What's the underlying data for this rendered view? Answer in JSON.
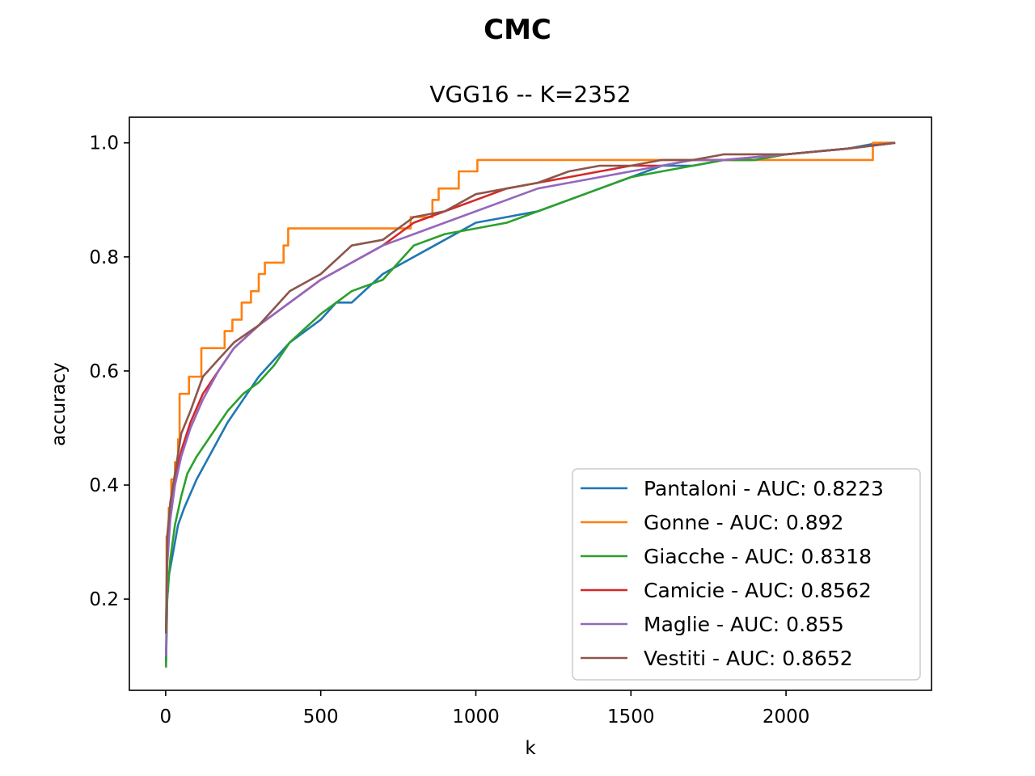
{
  "chart_data": {
    "type": "line",
    "title": "CMC",
    "subtitle": "VGG16 -- K=2352",
    "xlabel": "k",
    "ylabel": "accuracy",
    "xlim": [
      -117,
      2469
    ],
    "ylim": [
      0.04,
      1.045
    ],
    "xticks": [
      0,
      500,
      1000,
      1500,
      2000
    ],
    "yticks": [
      0.2,
      0.4,
      0.6,
      0.8,
      1.0
    ],
    "xtick_labels": [
      "0",
      "500",
      "1000",
      "1500",
      "2000"
    ],
    "ytick_labels": [
      "0.2",
      "0.4",
      "0.6",
      "0.8",
      "1.0"
    ],
    "legend_position": "lower-right",
    "grid": false,
    "series": [
      {
        "name": "Pantaloni - AUC: 0.8223",
        "color": "#1f77b4",
        "step": false,
        "points": [
          [
            1,
            0.09
          ],
          [
            5,
            0.2
          ],
          [
            10,
            0.24
          ],
          [
            20,
            0.27
          ],
          [
            40,
            0.33
          ],
          [
            60,
            0.36
          ],
          [
            100,
            0.41
          ],
          [
            150,
            0.46
          ],
          [
            200,
            0.51
          ],
          [
            250,
            0.55
          ],
          [
            300,
            0.59
          ],
          [
            400,
            0.65
          ],
          [
            500,
            0.69
          ],
          [
            550,
            0.72
          ],
          [
            600,
            0.72
          ],
          [
            700,
            0.77
          ],
          [
            800,
            0.8
          ],
          [
            900,
            0.83
          ],
          [
            1000,
            0.86
          ],
          [
            1100,
            0.87
          ],
          [
            1200,
            0.88
          ],
          [
            1300,
            0.9
          ],
          [
            1400,
            0.92
          ],
          [
            1500,
            0.94
          ],
          [
            1600,
            0.96
          ],
          [
            1700,
            0.96
          ],
          [
            1800,
            0.97
          ],
          [
            1900,
            0.97
          ],
          [
            2000,
            0.98
          ],
          [
            2200,
            0.99
          ],
          [
            2300,
            1.0
          ],
          [
            2352,
            1.0
          ]
        ]
      },
      {
        "name": "Gonne - AUC: 0.892",
        "color": "#ff7f0e",
        "step": true,
        "points": [
          [
            1,
            0.15
          ],
          [
            3,
            0.31
          ],
          [
            10,
            0.36
          ],
          [
            18,
            0.41
          ],
          [
            30,
            0.44
          ],
          [
            40,
            0.48
          ],
          [
            45,
            0.56
          ],
          [
            75,
            0.59
          ],
          [
            115,
            0.64
          ],
          [
            190,
            0.67
          ],
          [
            215,
            0.69
          ],
          [
            245,
            0.72
          ],
          [
            275,
            0.74
          ],
          [
            300,
            0.77
          ],
          [
            320,
            0.79
          ],
          [
            380,
            0.82
          ],
          [
            395,
            0.85
          ],
          [
            790,
            0.87
          ],
          [
            860,
            0.9
          ],
          [
            880,
            0.92
          ],
          [
            945,
            0.95
          ],
          [
            1005,
            0.97
          ],
          [
            1020,
            0.97
          ],
          [
            2280,
            1.0
          ],
          [
            2340,
            1.0
          ]
        ]
      },
      {
        "name": "Giacche - AUC: 0.8318",
        "color": "#2ca02c",
        "step": false,
        "points": [
          [
            1,
            0.08
          ],
          [
            5,
            0.2
          ],
          [
            15,
            0.27
          ],
          [
            30,
            0.33
          ],
          [
            50,
            0.38
          ],
          [
            70,
            0.42
          ],
          [
            100,
            0.45
          ],
          [
            150,
            0.49
          ],
          [
            200,
            0.53
          ],
          [
            250,
            0.56
          ],
          [
            300,
            0.58
          ],
          [
            350,
            0.61
          ],
          [
            400,
            0.65
          ],
          [
            500,
            0.7
          ],
          [
            600,
            0.74
          ],
          [
            700,
            0.76
          ],
          [
            800,
            0.82
          ],
          [
            900,
            0.84
          ],
          [
            1000,
            0.85
          ],
          [
            1100,
            0.86
          ],
          [
            1200,
            0.88
          ],
          [
            1300,
            0.9
          ],
          [
            1400,
            0.92
          ],
          [
            1500,
            0.94
          ],
          [
            1600,
            0.95
          ],
          [
            1700,
            0.96
          ],
          [
            1800,
            0.97
          ],
          [
            1900,
            0.97
          ],
          [
            2000,
            0.98
          ],
          [
            2200,
            0.99
          ],
          [
            2352,
            1.0
          ]
        ]
      },
      {
        "name": "Camicie - AUC: 0.8562",
        "color": "#d62728",
        "step": false,
        "points": [
          [
            1,
            0.14
          ],
          [
            5,
            0.28
          ],
          [
            15,
            0.35
          ],
          [
            30,
            0.41
          ],
          [
            50,
            0.46
          ],
          [
            80,
            0.51
          ],
          [
            120,
            0.56
          ],
          [
            170,
            0.6
          ],
          [
            220,
            0.64
          ],
          [
            300,
            0.68
          ],
          [
            400,
            0.72
          ],
          [
            500,
            0.76
          ],
          [
            600,
            0.79
          ],
          [
            700,
            0.82
          ],
          [
            800,
            0.86
          ],
          [
            900,
            0.88
          ],
          [
            1000,
            0.9
          ],
          [
            1100,
            0.92
          ],
          [
            1200,
            0.93
          ],
          [
            1300,
            0.94
          ],
          [
            1400,
            0.95
          ],
          [
            1500,
            0.96
          ],
          [
            1600,
            0.96
          ],
          [
            1700,
            0.97
          ],
          [
            1800,
            0.97
          ],
          [
            2000,
            0.98
          ],
          [
            2200,
            0.99
          ],
          [
            2352,
            1.0
          ]
        ]
      },
      {
        "name": "Maglie - AUC: 0.855",
        "color": "#9467bd",
        "step": false,
        "points": [
          [
            1,
            0.1
          ],
          [
            5,
            0.26
          ],
          [
            15,
            0.34
          ],
          [
            30,
            0.4
          ],
          [
            50,
            0.45
          ],
          [
            80,
            0.5
          ],
          [
            120,
            0.55
          ],
          [
            170,
            0.6
          ],
          [
            220,
            0.64
          ],
          [
            300,
            0.68
          ],
          [
            400,
            0.72
          ],
          [
            500,
            0.76
          ],
          [
            600,
            0.79
          ],
          [
            700,
            0.82
          ],
          [
            800,
            0.84
          ],
          [
            900,
            0.86
          ],
          [
            1000,
            0.88
          ],
          [
            1100,
            0.9
          ],
          [
            1200,
            0.92
          ],
          [
            1300,
            0.93
          ],
          [
            1400,
            0.94
          ],
          [
            1500,
            0.95
          ],
          [
            1600,
            0.96
          ],
          [
            1700,
            0.97
          ],
          [
            1800,
            0.97
          ],
          [
            2000,
            0.98
          ],
          [
            2200,
            0.99
          ],
          [
            2352,
            1.0
          ]
        ]
      },
      {
        "name": "Vestiti - AUC: 0.8652",
        "color": "#8c564b",
        "step": false,
        "points": [
          [
            1,
            0.14
          ],
          [
            5,
            0.31
          ],
          [
            15,
            0.37
          ],
          [
            30,
            0.42
          ],
          [
            50,
            0.49
          ],
          [
            80,
            0.53
          ],
          [
            120,
            0.59
          ],
          [
            170,
            0.62
          ],
          [
            220,
            0.65
          ],
          [
            300,
            0.68
          ],
          [
            400,
            0.74
          ],
          [
            500,
            0.77
          ],
          [
            600,
            0.82
          ],
          [
            700,
            0.83
          ],
          [
            800,
            0.87
          ],
          [
            900,
            0.88
          ],
          [
            1000,
            0.91
          ],
          [
            1100,
            0.92
          ],
          [
            1200,
            0.93
          ],
          [
            1300,
            0.95
          ],
          [
            1400,
            0.96
          ],
          [
            1500,
            0.96
          ],
          [
            1600,
            0.97
          ],
          [
            1700,
            0.97
          ],
          [
            1800,
            0.98
          ],
          [
            2000,
            0.98
          ],
          [
            2200,
            0.99
          ],
          [
            2352,
            1.0
          ]
        ]
      }
    ]
  }
}
